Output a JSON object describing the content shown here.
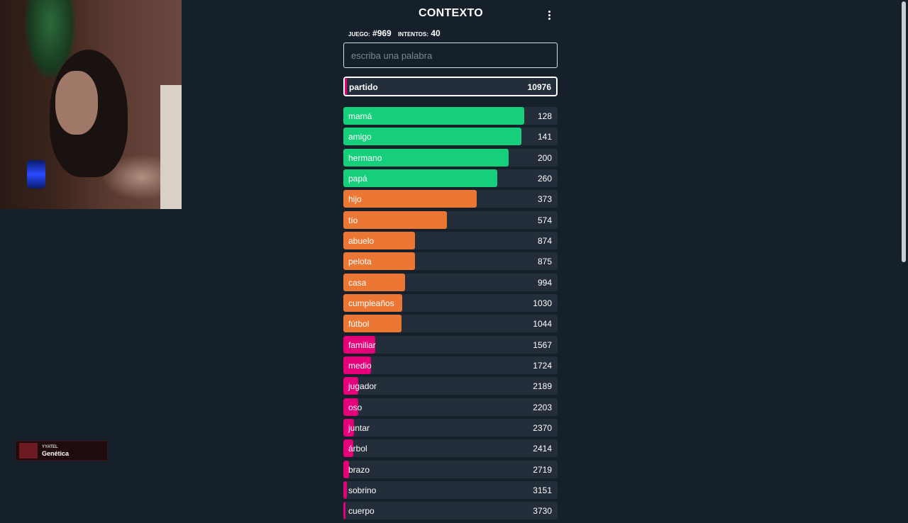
{
  "overlay": {
    "badge_user": "YYATEL",
    "badge_game": "Genética"
  },
  "game": {
    "title": "CONTEXTO",
    "game_label": "JUEGO:",
    "game_number": "#969",
    "attempts_label": "INTENTOS:",
    "attempts_value": "40",
    "search_placeholder": "escriba una palabra",
    "current_guess": {
      "word": "partido",
      "rank": "10976",
      "level": 0.01,
      "color": "#e5007a"
    },
    "guesses": [
      {
        "word": "mamá",
        "rank": "128",
        "level": 0.845,
        "color": "#16cf7b"
      },
      {
        "word": "amigo",
        "rank": "141",
        "level": 0.832,
        "color": "#16cf7b"
      },
      {
        "word": "hermano",
        "rank": "200",
        "level": 0.77,
        "color": "#16cf7b"
      },
      {
        "word": "papá",
        "rank": "260",
        "level": 0.717,
        "color": "#16cf7b"
      },
      {
        "word": "hijo",
        "rank": "373",
        "level": 0.622,
        "color": "#ec7734"
      },
      {
        "word": "tío",
        "rank": "574",
        "level": 0.483,
        "color": "#ec7734"
      },
      {
        "word": "abuelo",
        "rank": "874",
        "level": 0.335,
        "color": "#ec7734"
      },
      {
        "word": "pelota",
        "rank": "875",
        "level": 0.333,
        "color": "#ec7734"
      },
      {
        "word": "casa",
        "rank": "994",
        "level": 0.288,
        "color": "#ec7734"
      },
      {
        "word": "cumpleaños",
        "rank": "1030",
        "level": 0.275,
        "color": "#ec7734"
      },
      {
        "word": "fútbol",
        "rank": "1044",
        "level": 0.27,
        "color": "#ec7734"
      },
      {
        "word": "familiar",
        "rank": "1567",
        "level": 0.15,
        "color": "#e5007a"
      },
      {
        "word": "medio",
        "rank": "1724",
        "level": 0.13,
        "color": "#e5007a"
      },
      {
        "word": "jugador",
        "rank": "2189",
        "level": 0.07,
        "color": "#e5007a"
      },
      {
        "word": "oso",
        "rank": "2203",
        "level": 0.068,
        "color": "#e5007a"
      },
      {
        "word": "juntar",
        "rank": "2370",
        "level": 0.05,
        "color": "#e5007a"
      },
      {
        "word": "árbol",
        "rank": "2414",
        "level": 0.045,
        "color": "#e5007a"
      },
      {
        "word": "brazo",
        "rank": "2719",
        "level": 0.025,
        "color": "#e5007a"
      },
      {
        "word": "sobrino",
        "rank": "3151",
        "level": 0.015,
        "color": "#e5007a"
      },
      {
        "word": "cuerpo",
        "rank": "3730",
        "level": 0.01,
        "color": "#e5007a"
      }
    ]
  },
  "icons": {
    "menu": "more-vertical-icon",
    "cursor": "text-cursor-icon"
  }
}
